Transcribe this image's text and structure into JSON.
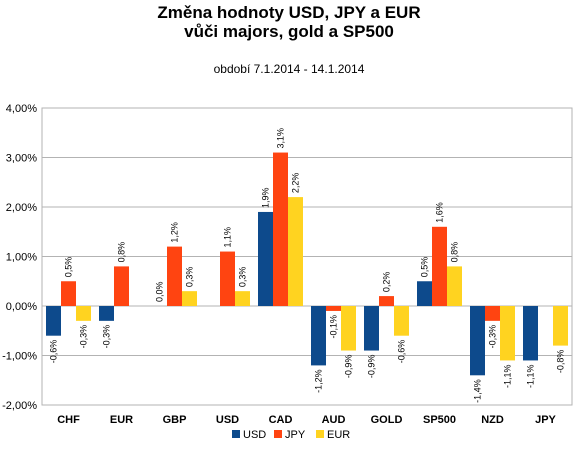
{
  "chart_data": {
    "type": "bar",
    "title": "Změna hodnoty USD, JPY a EUR",
    "title_line2": "vůči majors, gold a SP500",
    "subtitle": "období 7.1.2014 - 14.1.2014",
    "categories": [
      "CHF",
      "EUR",
      "GBP",
      "USD",
      "CAD",
      "AUD",
      "GOLD",
      "SP500",
      "NZD",
      "JPY"
    ],
    "series": [
      {
        "name": "USD",
        "color": "#0d4a8c",
        "values": [
          -0.006,
          -0.003,
          0.0,
          null,
          0.019,
          -0.012,
          -0.009,
          0.005,
          -0.014,
          -0.011
        ],
        "labels": [
          "-0,6%",
          "-0,3%",
          "0,0%",
          null,
          "1,9%",
          "-1,2%",
          "-0,9%",
          "0,5%",
          "-1,4%",
          "-1,1%"
        ]
      },
      {
        "name": "JPY",
        "color": "#ff4411",
        "values": [
          0.005,
          0.008,
          0.012,
          0.011,
          0.031,
          -0.001,
          0.002,
          0.016,
          -0.003,
          null
        ],
        "labels": [
          "0,5%",
          "0,8%",
          "1,2%",
          "1,1%",
          "3,1%",
          "-0,1%",
          "0,2%",
          "1,6%",
          "-0,3%",
          null
        ]
      },
      {
        "name": "EUR",
        "color": "#ffd320",
        "values": [
          -0.003,
          null,
          0.003,
          0.003,
          0.022,
          -0.009,
          -0.006,
          0.008,
          -0.011,
          -0.008
        ],
        "labels": [
          "-0,3%",
          null,
          "0,3%",
          "0,3%",
          "2,2%",
          "-0,9%",
          "-0,6%",
          "0,8%",
          "-1,1%",
          "-0,8%"
        ]
      }
    ],
    "ylim": [
      -0.02,
      0.04
    ],
    "yticks": [
      -0.02,
      -0.01,
      0.0,
      0.01,
      0.02,
      0.03,
      0.04
    ],
    "ytick_labels": [
      "-2,00%",
      "-1,00%",
      "0,00%",
      "1,00%",
      "2,00%",
      "3,00%",
      "4,00%"
    ],
    "grid": true,
    "legend_position": "bottom"
  }
}
